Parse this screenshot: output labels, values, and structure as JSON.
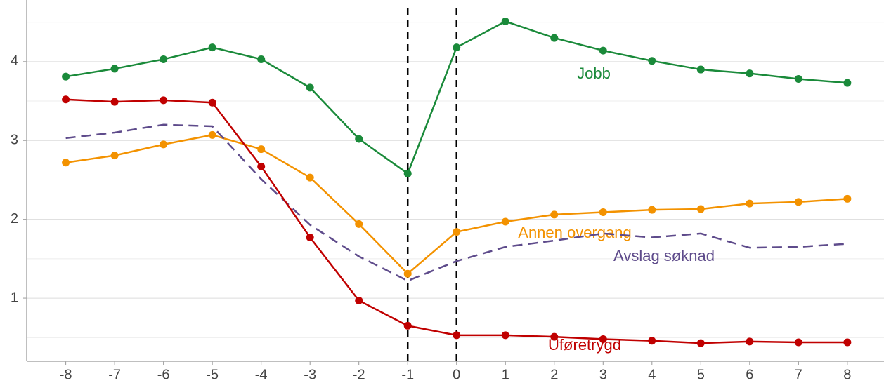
{
  "chart_data": {
    "type": "line",
    "x": [
      -8,
      -7,
      -6,
      -5,
      -4,
      -3,
      -2,
      -1,
      0,
      1,
      2,
      3,
      4,
      5,
      6,
      7,
      8
    ],
    "xlim": [
      -8.8,
      8.75
    ],
    "xticks": [
      -8,
      -7,
      -6,
      -5,
      -4,
      -3,
      -2,
      -1,
      0,
      1,
      2,
      3,
      4,
      5,
      6,
      7,
      8
    ],
    "ylim": [
      0.2,
      4.71
    ],
    "yticks": [
      1,
      2,
      3,
      4
    ],
    "minor_yticks": [
      0.5,
      1.5,
      2.5,
      3.5,
      4.5
    ],
    "grid": true,
    "vlines": [
      -1,
      0
    ],
    "series": [
      {
        "name": "Jobb",
        "color": "#1a8a3a",
        "markers": true,
        "dashed": false,
        "values": [
          3.81,
          3.91,
          4.03,
          4.18,
          4.03,
          3.67,
          3.02,
          2.58,
          4.18,
          4.51,
          4.3,
          4.14,
          4.01,
          3.9,
          3.85,
          3.78,
          3.73
        ]
      },
      {
        "name": "Annen overgang",
        "color": "#f39200",
        "markers": true,
        "dashed": false,
        "values": [
          2.72,
          2.81,
          2.95,
          3.07,
          2.89,
          2.53,
          1.94,
          1.31,
          1.84,
          1.97,
          2.06,
          2.09,
          2.12,
          2.13,
          2.2,
          2.22,
          2.26
        ]
      },
      {
        "name": "Avslag søknad",
        "color": "#5e4b8b",
        "markers": false,
        "dashed": true,
        "values": [
          3.03,
          3.1,
          3.2,
          3.18,
          2.51,
          1.93,
          1.53,
          1.22,
          1.47,
          1.65,
          1.73,
          1.82,
          1.77,
          1.82,
          1.64,
          1.65,
          1.69
        ]
      },
      {
        "name": "Uføretrygd",
        "color": "#c00000",
        "markers": true,
        "dashed": false,
        "values": [
          3.52,
          3.49,
          3.51,
          3.48,
          2.67,
          1.77,
          0.97,
          0.65,
          0.53,
          0.53,
          0.51,
          0.48,
          0.46,
          0.43,
          0.45,
          0.44,
          0.44
        ]
      }
    ]
  }
}
